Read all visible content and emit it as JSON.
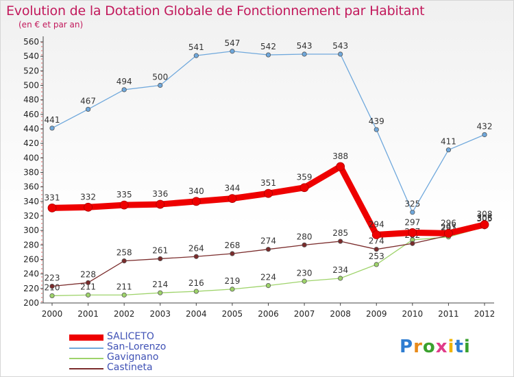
{
  "header": {
    "title": "Evolution de la Dotation Globale de Fonctionnement par Habitant",
    "subtitle": "(en € et par an)"
  },
  "logo": {
    "letters": [
      "P",
      "r",
      "o",
      "x",
      "i",
      "t",
      "i"
    ],
    "colors": [
      "#2e7dd1",
      "#e88a1a",
      "#3aa12e",
      "#e03c8a",
      "#f0b400",
      "#2e7dd1",
      "#3aa12e"
    ]
  },
  "chart_data": {
    "type": "line",
    "title": "Evolution de la Dotation Globale de Fonctionnement par Habitant",
    "subtitle": "(en € et par an)",
    "x": [
      "2000",
      "2001",
      "2002",
      "2003",
      "2004",
      "2005",
      "2006",
      "2007",
      "2008",
      "2009",
      "2010",
      "2011",
      "2012"
    ],
    "y_ticks": [
      "200",
      "220",
      "240",
      "260",
      "280",
      "300",
      "320",
      "340",
      "360",
      "380",
      "400",
      "420",
      "440",
      "460",
      "480",
      "500",
      "520",
      "540",
      "560"
    ],
    "ylim": [
      200,
      560
    ],
    "grid": false,
    "legend_position": "bottom-left",
    "series": [
      {
        "name": "SALICETO",
        "color": "#ee0000",
        "values": [
          331,
          332,
          335,
          336,
          340,
          344,
          351,
          359,
          388,
          294,
          297,
          296,
          308
        ],
        "labels": [
          "331",
          "332",
          "335",
          "336",
          "340",
          "344",
          "351",
          "359",
          "388",
          "294",
          "297",
          "296",
          "308"
        ]
      },
      {
        "name": "San-Lorenzo",
        "color": "#6fa8dc",
        "values": [
          441,
          467,
          494,
          500,
          541,
          547,
          542,
          543,
          543,
          439,
          325,
          411,
          432
        ],
        "labels": [
          "441",
          "467",
          "494",
          "500",
          "541",
          "547",
          "542",
          "543",
          "543",
          "439",
          "325",
          "411",
          "432"
        ]
      },
      {
        "name": "Gavignano",
        "color": "#9ed36a",
        "values": [
          210,
          211,
          211,
          214,
          216,
          219,
          224,
          230,
          234,
          253,
          287,
          291,
          305
        ],
        "labels": [
          "210",
          "211",
          "211",
          "214",
          "216",
          "219",
          "224",
          "230",
          "234",
          "253",
          "287",
          "291",
          "305"
        ]
      },
      {
        "name": "Castineta",
        "color": "#7a2b2b",
        "values": [
          223,
          228,
          258,
          261,
          264,
          268,
          274,
          280,
          285,
          274,
          282,
          293,
          306
        ],
        "labels": [
          "223",
          "228",
          "258",
          "261",
          "264",
          "268",
          "274",
          "280",
          "285",
          "274",
          "282",
          "293",
          "306"
        ]
      }
    ]
  }
}
